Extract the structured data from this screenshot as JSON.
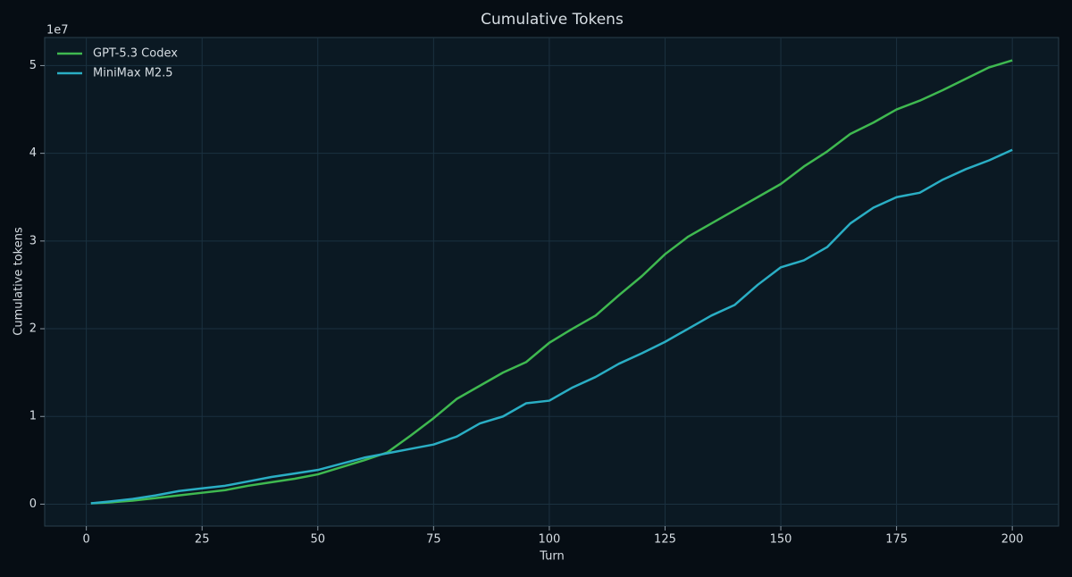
{
  "chart_data": {
    "type": "line",
    "title": "Cumulative Tokens",
    "x_label": "Turn",
    "y_label": "Cumulative tokens",
    "y_offset_label": "1e7",
    "x": [
      1,
      5,
      10,
      15,
      20,
      25,
      30,
      35,
      40,
      45,
      50,
      55,
      60,
      65,
      70,
      75,
      80,
      85,
      90,
      95,
      100,
      105,
      110,
      115,
      120,
      125,
      130,
      135,
      140,
      145,
      150,
      155,
      160,
      165,
      170,
      175,
      180,
      185,
      190,
      195,
      200
    ],
    "series": [
      {
        "name": "GPT-5.3 Codex",
        "color": "#3fb950",
        "values": [
          0.01,
          0.02,
          0.04,
          0.07,
          0.1,
          0.13,
          0.16,
          0.21,
          0.25,
          0.29,
          0.34,
          0.42,
          0.5,
          0.59,
          0.78,
          0.98,
          1.2,
          1.35,
          1.5,
          1.62,
          1.84,
          2.0,
          2.15,
          2.38,
          2.6,
          2.85,
          3.05,
          3.2,
          3.35,
          3.5,
          3.65,
          3.85,
          4.02,
          4.22,
          4.35,
          4.5,
          4.6,
          4.72,
          4.85,
          4.98,
          5.06
        ]
      },
      {
        "name": "MiniMax M2.5",
        "color": "#2aaec4",
        "values": [
          0.01,
          0.03,
          0.06,
          0.1,
          0.15,
          0.18,
          0.21,
          0.26,
          0.31,
          0.35,
          0.39,
          0.46,
          0.53,
          0.58,
          0.63,
          0.68,
          0.77,
          0.92,
          1.0,
          1.15,
          1.18,
          1.33,
          1.45,
          1.6,
          1.72,
          1.85,
          2.0,
          2.15,
          2.27,
          2.5,
          2.7,
          2.78,
          2.93,
          3.2,
          3.38,
          3.5,
          3.55,
          3.7,
          3.82,
          3.92,
          4.04
        ]
      }
    ],
    "xlim": [
      -9,
      210
    ],
    "ylim": [
      -0.25,
      5.32
    ],
    "xticks": [
      0,
      25,
      50,
      75,
      100,
      125,
      150,
      175,
      200
    ],
    "yticks": [
      0,
      1,
      2,
      3,
      4,
      5
    ],
    "grid": true,
    "legend": "upper-left"
  }
}
